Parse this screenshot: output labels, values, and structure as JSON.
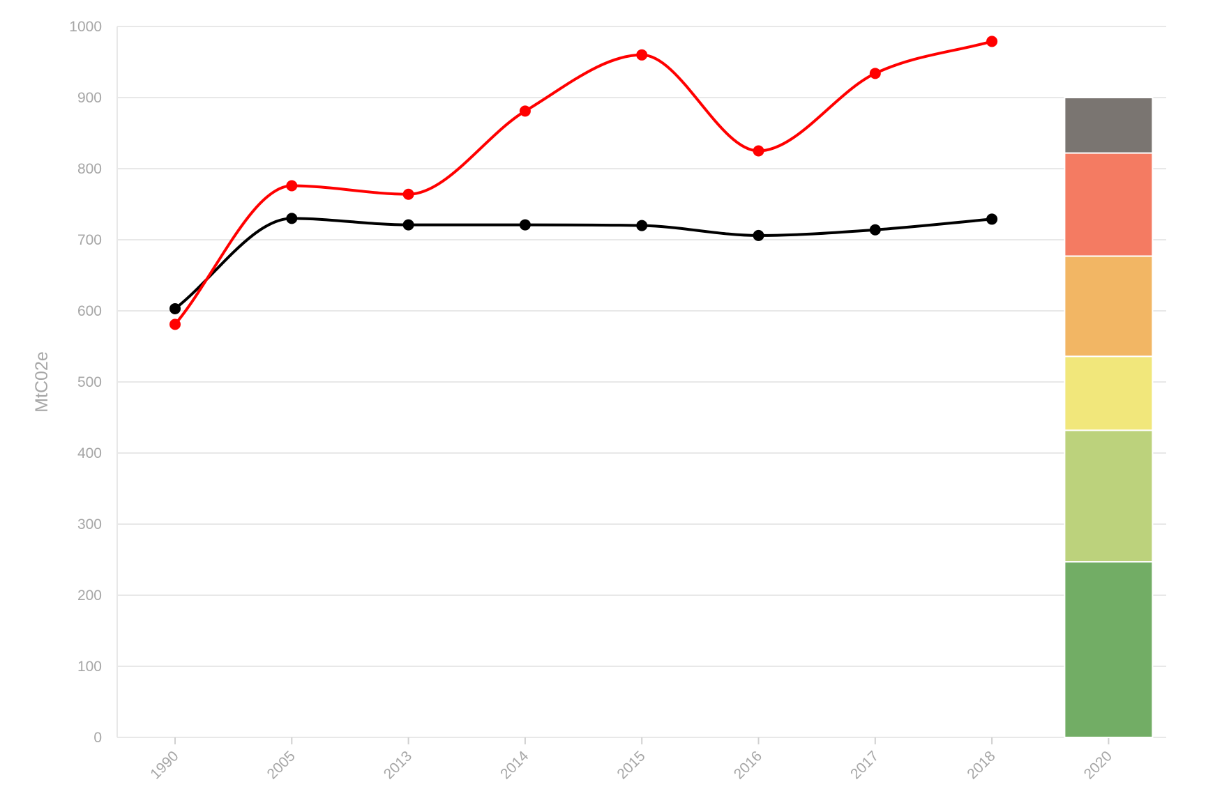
{
  "chart_data": {
    "type": "line",
    "title": "",
    "xlabel": "",
    "ylabel": "MtC02e",
    "ylim": [
      0,
      1000
    ],
    "y_ticks": [
      0,
      100,
      200,
      300,
      400,
      500,
      600,
      700,
      800,
      900,
      1000
    ],
    "categories": [
      "1990",
      "2005",
      "2013",
      "2014",
      "2015",
      "2016",
      "2017",
      "2018",
      "2020"
    ],
    "grid": true,
    "legend": "none",
    "series": [
      {
        "type": "line",
        "color": "#ff0000",
        "values": [
          581,
          776,
          764,
          881,
          960,
          825,
          934,
          979,
          null
        ]
      },
      {
        "type": "line",
        "color": "#000000",
        "values": [
          603,
          730,
          721,
          721,
          720,
          706,
          714,
          729,
          null
        ]
      }
    ],
    "stacked_bar": {
      "category": "2020",
      "segments": [
        {
          "from": 0,
          "to": 247,
          "color": "#72ad65"
        },
        {
          "from": 247,
          "to": 432,
          "color": "#bcd27c"
        },
        {
          "from": 432,
          "to": 536,
          "color": "#f1e77b"
        },
        {
          "from": 536,
          "to": 677,
          "color": "#f2b664"
        },
        {
          "from": 677,
          "to": 822,
          "color": "#f47b62"
        },
        {
          "from": 822,
          "to": 900,
          "color": "#7a7571"
        }
      ]
    }
  }
}
